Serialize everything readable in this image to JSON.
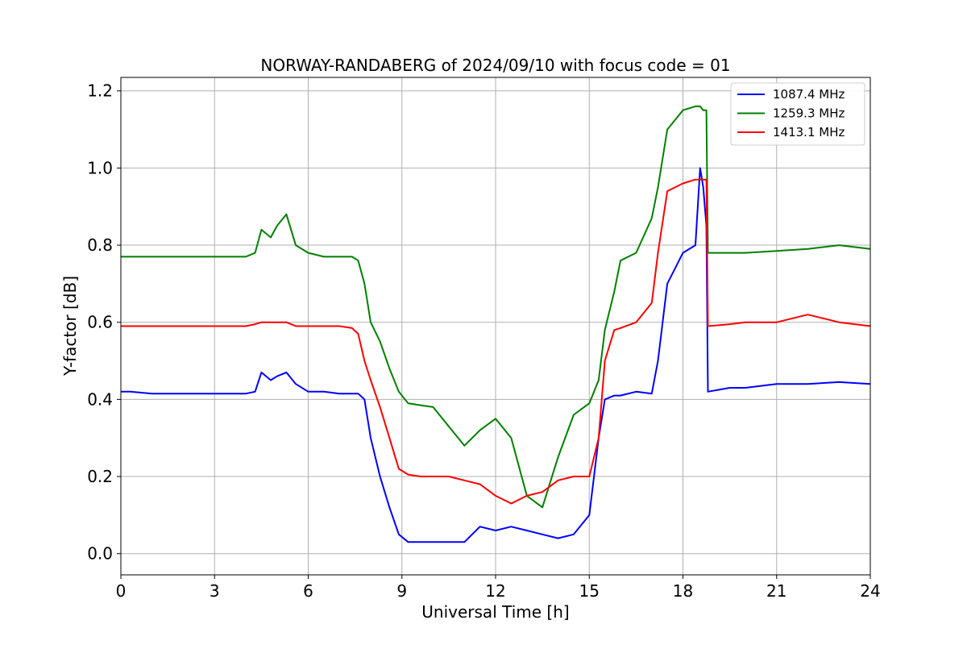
{
  "chart_data": {
    "type": "line",
    "title": "NORWAY-RANDABERG of 2024/09/10 with focus code = 01",
    "xlabel": "Universal Time [h]",
    "ylabel": "Y-factor [dB]",
    "xlim": [
      0,
      24
    ],
    "ylim": [
      -0.055,
      1.235
    ],
    "xticks": [
      0,
      3,
      6,
      9,
      12,
      15,
      18,
      21,
      24
    ],
    "xtick_labels": [
      "0",
      "3",
      "6",
      "9",
      "12",
      "15",
      "18",
      "21",
      "24"
    ],
    "yticks": [
      0.0,
      0.2,
      0.4,
      0.6,
      0.8,
      1.0,
      1.2
    ],
    "ytick_labels": [
      "0.0",
      "0.2",
      "0.4",
      "0.6",
      "0.8",
      "1.0",
      "1.2"
    ],
    "grid": true,
    "legend_position": "top-right",
    "series": [
      {
        "name": "1087.4 MHz",
        "color": "#0000ff",
        "x": [
          0,
          0.3,
          1,
          2,
          3,
          4,
          4.3,
          4.5,
          4.8,
          5.0,
          5.3,
          5.6,
          6.0,
          6.5,
          7.0,
          7.4,
          7.6,
          7.8,
          8.0,
          8.3,
          8.6,
          8.9,
          9.2,
          9.6,
          10.0,
          10.5,
          11.0,
          11.5,
          12.0,
          12.5,
          13.0,
          13.5,
          14.0,
          14.5,
          15.0,
          15.3,
          15.5,
          15.8,
          16.0,
          16.5,
          17.0,
          17.2,
          17.5,
          18.0,
          18.4,
          18.55,
          18.65,
          18.75,
          18.8,
          19.5,
          20,
          21,
          22,
          23,
          24
        ],
        "y": [
          0.42,
          0.42,
          0.415,
          0.415,
          0.415,
          0.415,
          0.42,
          0.47,
          0.45,
          0.46,
          0.47,
          0.44,
          0.42,
          0.42,
          0.415,
          0.415,
          0.415,
          0.4,
          0.3,
          0.2,
          0.12,
          0.05,
          0.03,
          0.03,
          0.03,
          0.03,
          0.03,
          0.07,
          0.06,
          0.07,
          0.06,
          0.05,
          0.04,
          0.05,
          0.1,
          0.3,
          0.4,
          0.41,
          0.41,
          0.42,
          0.415,
          0.5,
          0.7,
          0.78,
          0.8,
          1.0,
          0.95,
          0.85,
          0.42,
          0.43,
          0.43,
          0.44,
          0.44,
          0.445,
          0.44
        ]
      },
      {
        "name": "1259.3 MHz",
        "color": "#008000",
        "x": [
          0,
          0.3,
          1,
          2,
          3,
          4,
          4.3,
          4.5,
          4.8,
          5.0,
          5.3,
          5.6,
          6.0,
          6.5,
          7.0,
          7.4,
          7.6,
          7.8,
          8.0,
          8.3,
          8.6,
          8.9,
          9.2,
          9.6,
          10.0,
          10.5,
          11.0,
          11.5,
          12.0,
          12.5,
          13.0,
          13.5,
          14.0,
          14.5,
          15.0,
          15.3,
          15.5,
          15.8,
          16.0,
          16.5,
          17.0,
          17.2,
          17.5,
          18.0,
          18.4,
          18.55,
          18.65,
          18.75,
          18.8,
          19.5,
          20,
          21,
          22,
          23,
          24
        ],
        "y": [
          0.77,
          0.77,
          0.77,
          0.77,
          0.77,
          0.77,
          0.78,
          0.84,
          0.82,
          0.85,
          0.88,
          0.8,
          0.78,
          0.77,
          0.77,
          0.77,
          0.76,
          0.7,
          0.6,
          0.55,
          0.48,
          0.42,
          0.39,
          0.385,
          0.38,
          0.33,
          0.28,
          0.32,
          0.35,
          0.3,
          0.15,
          0.12,
          0.25,
          0.36,
          0.39,
          0.45,
          0.58,
          0.68,
          0.76,
          0.78,
          0.87,
          0.95,
          1.1,
          1.15,
          1.16,
          1.16,
          1.15,
          1.15,
          0.78,
          0.78,
          0.78,
          0.785,
          0.79,
          0.8,
          0.79
        ]
      },
      {
        "name": "1413.1 MHz",
        "color": "#ff0000",
        "x": [
          0,
          0.3,
          1,
          2,
          3,
          4,
          4.3,
          4.5,
          4.8,
          5.0,
          5.3,
          5.6,
          6.0,
          6.5,
          7.0,
          7.4,
          7.6,
          7.8,
          8.0,
          8.3,
          8.6,
          8.9,
          9.2,
          9.6,
          10.0,
          10.5,
          11.0,
          11.5,
          12.0,
          12.5,
          13.0,
          13.5,
          14.0,
          14.5,
          15.0,
          15.3,
          15.5,
          15.8,
          16.0,
          16.5,
          17.0,
          17.2,
          17.5,
          18.0,
          18.4,
          18.55,
          18.65,
          18.75,
          18.8,
          19.5,
          20,
          21,
          22,
          23,
          24
        ],
        "y": [
          0.59,
          0.59,
          0.59,
          0.59,
          0.59,
          0.59,
          0.595,
          0.6,
          0.6,
          0.6,
          0.6,
          0.59,
          0.59,
          0.59,
          0.59,
          0.585,
          0.57,
          0.5,
          0.45,
          0.38,
          0.3,
          0.22,
          0.205,
          0.2,
          0.2,
          0.2,
          0.19,
          0.18,
          0.15,
          0.13,
          0.15,
          0.16,
          0.19,
          0.2,
          0.2,
          0.3,
          0.5,
          0.58,
          0.585,
          0.6,
          0.65,
          0.78,
          0.94,
          0.96,
          0.97,
          0.97,
          0.97,
          0.97,
          0.59,
          0.595,
          0.6,
          0.6,
          0.62,
          0.6,
          0.59
        ]
      }
    ]
  }
}
